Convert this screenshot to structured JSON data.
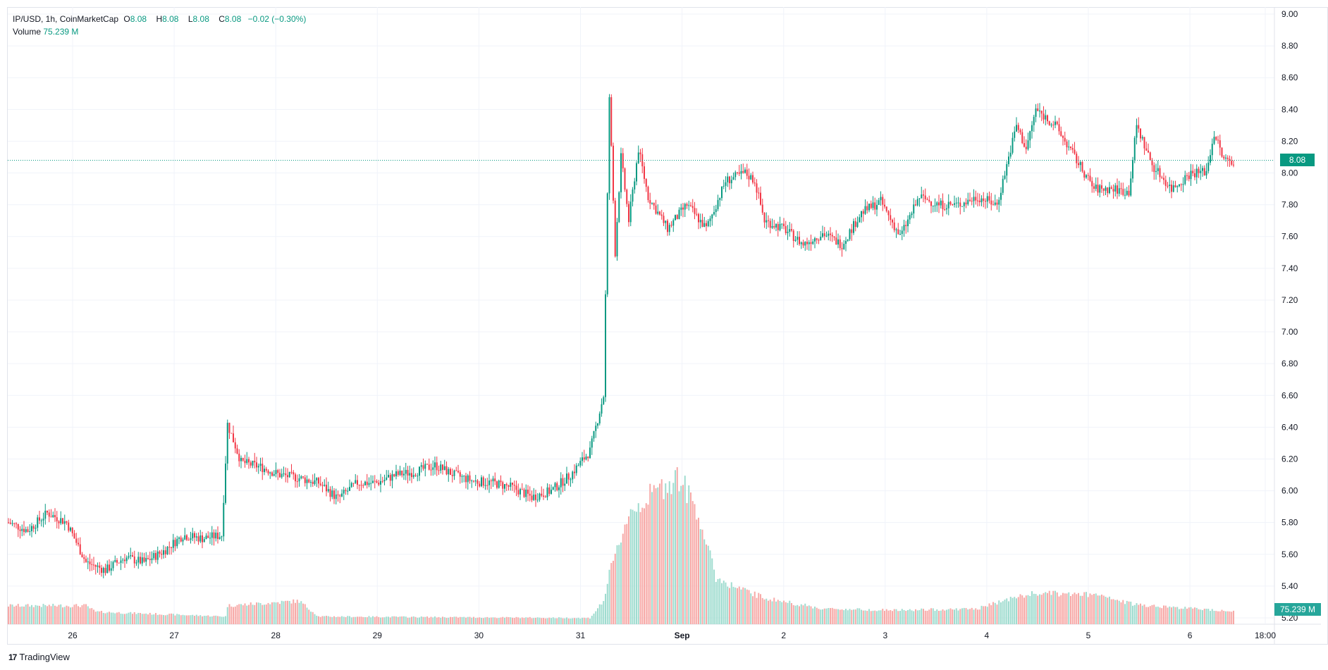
{
  "legend": {
    "symbol": "IP/USD, 1h, CoinMarketCap",
    "o_label": "O",
    "o": "8.08",
    "h_label": "H",
    "h": "8.08",
    "l_label": "L",
    "l": "8.08",
    "c_label": "C",
    "c": "8.08",
    "change": "−0.02 (−0.30%)",
    "volume_label": "Volume",
    "volume": "75.239 M"
  },
  "price_badge": "8.08",
  "volume_badge": "75.239 M",
  "brand": {
    "logo": "17",
    "name": "TradingView"
  },
  "colors": {
    "up": "#089981",
    "down": "#f23645",
    "vol_up": "#9fdccf",
    "vol_down": "#f7a9a7",
    "last_line": "#089981",
    "grid": "#f0f3fa"
  },
  "chart_data": {
    "type": "candlestick",
    "title": "IP/USD, 1h, CoinMarketCap",
    "ylim": [
      5.2,
      9.0
    ],
    "y_ticks": [
      "9.00",
      "8.80",
      "8.60",
      "8.40",
      "8.20",
      "8.00",
      "7.80",
      "7.60",
      "7.40",
      "7.20",
      "7.00",
      "6.80",
      "6.60",
      "6.40",
      "6.20",
      "6.00",
      "5.80",
      "5.60",
      "5.40",
      "5.20"
    ],
    "x_ticks": [
      {
        "label": "26",
        "bold": false
      },
      {
        "label": "27",
        "bold": false
      },
      {
        "label": "28",
        "bold": false
      },
      {
        "label": "29",
        "bold": false
      },
      {
        "label": "30",
        "bold": false
      },
      {
        "label": "31",
        "bold": false
      },
      {
        "label": "Sep",
        "bold": true
      },
      {
        "label": "2",
        "bold": false
      },
      {
        "label": "3",
        "bold": false
      },
      {
        "label": "4",
        "bold": false
      },
      {
        "label": "5",
        "bold": false
      },
      {
        "label": "6",
        "bold": false
      },
      {
        "label": "18:00",
        "bold": false
      }
    ],
    "last_price": 8.08,
    "close_path": [
      [
        0,
        5.8
      ],
      [
        10,
        5.75
      ],
      [
        20,
        5.86
      ],
      [
        30,
        5.8
      ],
      [
        40,
        5.55
      ],
      [
        50,
        5.5
      ],
      [
        60,
        5.58
      ],
      [
        70,
        5.55
      ],
      [
        80,
        5.62
      ],
      [
        90,
        5.72
      ],
      [
        100,
        5.7
      ],
      [
        110,
        5.72
      ],
      [
        113,
        6.42
      ],
      [
        120,
        6.18
      ],
      [
        130,
        6.15
      ],
      [
        140,
        6.1
      ],
      [
        150,
        6.08
      ],
      [
        160,
        6.05
      ],
      [
        170,
        5.95
      ],
      [
        180,
        6.05
      ],
      [
        190,
        6.05
      ],
      [
        200,
        6.1
      ],
      [
        210,
        6.12
      ],
      [
        220,
        6.16
      ],
      [
        230,
        6.1
      ],
      [
        240,
        6.06
      ],
      [
        250,
        6.05
      ],
      [
        260,
        6.02
      ],
      [
        270,
        5.96
      ],
      [
        280,
        6.0
      ],
      [
        290,
        6.1
      ],
      [
        300,
        6.25
      ],
      [
        307,
        6.6
      ],
      [
        310,
        8.48
      ],
      [
        313,
        7.5
      ],
      [
        316,
        8.1
      ],
      [
        320,
        7.7
      ],
      [
        325,
        8.15
      ],
      [
        330,
        7.85
      ],
      [
        340,
        7.65
      ],
      [
        350,
        7.8
      ],
      [
        360,
        7.65
      ],
      [
        370,
        7.95
      ],
      [
        380,
        8.0
      ],
      [
        385,
        7.95
      ],
      [
        390,
        7.7
      ],
      [
        400,
        7.65
      ],
      [
        410,
        7.55
      ],
      [
        420,
        7.62
      ],
      [
        430,
        7.55
      ],
      [
        440,
        7.75
      ],
      [
        450,
        7.82
      ],
      [
        460,
        7.6
      ],
      [
        470,
        7.85
      ],
      [
        480,
        7.8
      ],
      [
        490,
        7.8
      ],
      [
        500,
        7.85
      ],
      [
        510,
        7.8
      ],
      [
        520,
        8.3
      ],
      [
        525,
        8.15
      ],
      [
        530,
        8.4
      ],
      [
        540,
        8.3
      ],
      [
        550,
        8.1
      ],
      [
        560,
        7.9
      ],
      [
        570,
        7.9
      ],
      [
        578,
        7.88
      ],
      [
        582,
        8.3
      ],
      [
        590,
        8.05
      ],
      [
        600,
        7.9
      ],
      [
        610,
        8.0
      ],
      [
        618,
        8.01
      ],
      [
        622,
        8.25
      ],
      [
        627,
        8.08
      ],
      [
        632,
        8.08
      ]
    ],
    "volume_path": [
      [
        0,
        1.2
      ],
      [
        40,
        1.2
      ],
      [
        45,
        0.8
      ],
      [
        112,
        0.5
      ],
      [
        113,
        1.2
      ],
      [
        150,
        1.5
      ],
      [
        160,
        0.5
      ],
      [
        300,
        0.4
      ],
      [
        307,
        1.5
      ],
      [
        310,
        3.2
      ],
      [
        320,
        7.2
      ],
      [
        345,
        9.6
      ],
      [
        355,
        7.5
      ],
      [
        365,
        3.0
      ],
      [
        375,
        2.4
      ],
      [
        390,
        1.7
      ],
      [
        420,
        1.0
      ],
      [
        460,
        0.9
      ],
      [
        500,
        1.0
      ],
      [
        515,
        1.6
      ],
      [
        530,
        2.0
      ],
      [
        560,
        1.9
      ],
      [
        580,
        1.3
      ],
      [
        600,
        1.1
      ],
      [
        632,
        0.85
      ]
    ],
    "volume_max": 10
  }
}
